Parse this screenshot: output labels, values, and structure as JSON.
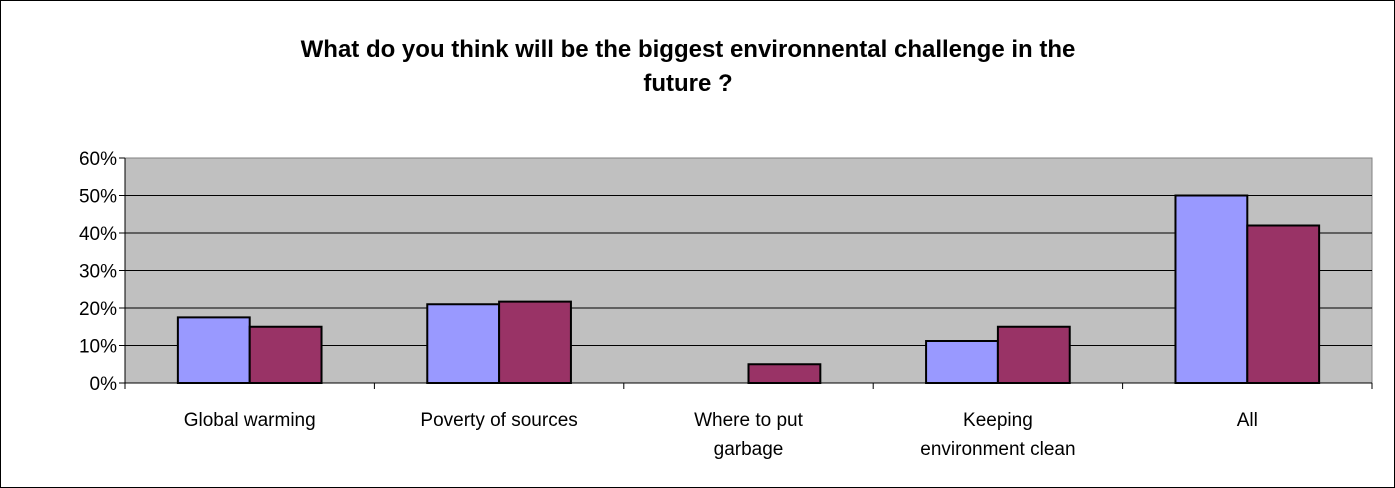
{
  "chart_data": {
    "type": "bar",
    "title_lines": [
      "What do you think will be the biggest environnental challenge in the",
      "future ?"
    ],
    "categories": [
      [
        "Global warming"
      ],
      [
        "Poverty of sources"
      ],
      [
        "Where to put",
        "garbage"
      ],
      [
        "Keeping",
        "environment clean"
      ],
      [
        "All"
      ]
    ],
    "series": [
      {
        "values": [
          17.5,
          21,
          0,
          11.2,
          50
        ],
        "color": "#9999FF"
      },
      {
        "values": [
          15,
          21.7,
          5,
          15,
          42
        ],
        "color": "#993366"
      }
    ],
    "y_ticks": [
      "0%",
      "10%",
      "20%",
      "30%",
      "40%",
      "50%",
      "60%"
    ],
    "ylim": [
      0,
      60
    ],
    "y_unit": "%",
    "grid": true,
    "legend": "none",
    "plot_background": "#C0C0C0"
  }
}
